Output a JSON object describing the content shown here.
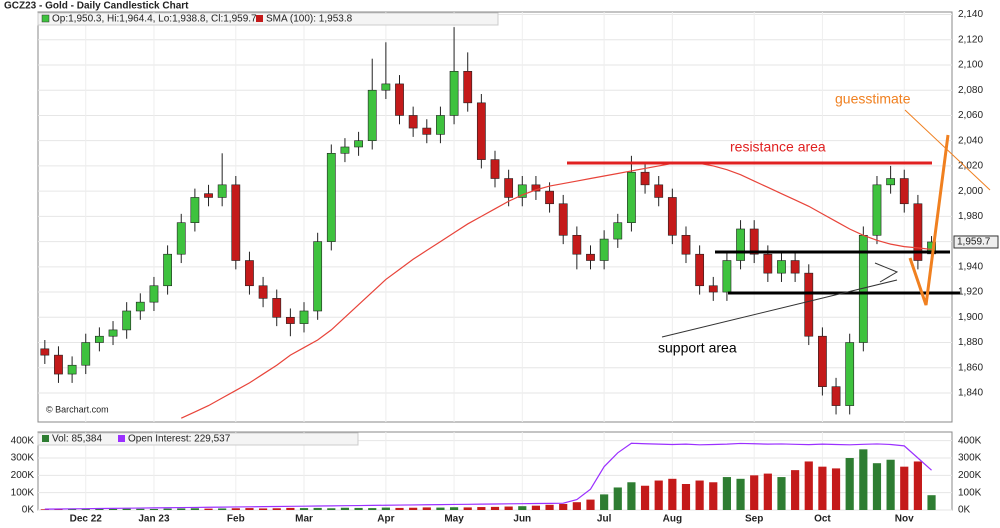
{
  "chart_data": [
    {
      "type": "candlestick",
      "title": "GCZ23 - Gold - Daily Candlestick Chart",
      "ohlc_legend": "Op:1,950.3, Hi:1,964.4, Lo:1,938.8, Cl:1,959.7",
      "last_label": "1,959.7",
      "copyright": "© Barchart.com",
      "annotations": [
        "resistance area",
        "support area",
        "guesstimate"
      ],
      "categories": [
        null,
        null,
        null,
        "Dec 22",
        null,
        null,
        null,
        null,
        "Jan 23",
        null,
        null,
        null,
        null,
        null,
        "Feb",
        null,
        null,
        null,
        null,
        "Mar",
        null,
        null,
        null,
        null,
        null,
        "Apr",
        null,
        null,
        null,
        null,
        "May",
        null,
        null,
        null,
        null,
        "Jun",
        null,
        null,
        null,
        null,
        null,
        "Jul",
        null,
        null,
        null,
        null,
        "Aug",
        null,
        null,
        null,
        null,
        null,
        "Sep",
        null,
        null,
        null,
        null,
        "Oct",
        null,
        null,
        null,
        null,
        null,
        "Nov",
        null,
        null
      ],
      "open": [
        1875,
        1870,
        1855,
        1862,
        1880,
        1885,
        1890,
        1905,
        1912,
        1925,
        1950,
        1975,
        1998,
        1995,
        2005,
        1945,
        1925,
        1915,
        1900,
        1895,
        1905,
        1960,
        2030,
        2035,
        2040,
        2080,
        2085,
        2060,
        2050,
        2045,
        2060,
        2095,
        2070,
        2025,
        2010,
        1995,
        2005,
        2000,
        1990,
        1965,
        1950,
        1945,
        1962,
        1975,
        2015,
        2005,
        1995,
        1965,
        1950,
        1925,
        1920,
        1945,
        1970,
        1950,
        1935,
        1945,
        1935,
        1885,
        1845,
        1830,
        1880,
        1965,
        2005,
        2010,
        1990,
        1950.3
      ],
      "high": [
        1882,
        1877,
        1869,
        1887,
        1892,
        1897,
        1912,
        1919,
        1932,
        1957,
        1982,
        2002,
        2005,
        2030,
        2012,
        1952,
        1932,
        1922,
        1907,
        1912,
        1967,
        2037,
        2042,
        2047,
        2105,
        2118,
        2092,
        2067,
        2057,
        2067,
        2130,
        2110,
        2077,
        2032,
        2017,
        2012,
        2012,
        2007,
        1997,
        1972,
        1957,
        1969,
        1982,
        2028,
        2022,
        2012,
        2002,
        1972,
        1957,
        1932,
        1952,
        1977,
        1977,
        1957,
        1952,
        1952,
        1942,
        1892,
        1852,
        1887,
        1972,
        2012,
        2020,
        2017,
        1997,
        1964.4
      ],
      "low": [
        1863,
        1848,
        1848,
        1855,
        1873,
        1878,
        1883,
        1898,
        1905,
        1918,
        1943,
        1968,
        1988,
        1988,
        1938,
        1918,
        1908,
        1893,
        1885,
        1888,
        1898,
        1953,
        2023,
        2028,
        2033,
        2073,
        2053,
        2043,
        2038,
        2038,
        2053,
        2063,
        2018,
        2003,
        1988,
        1988,
        1993,
        1983,
        1958,
        1938,
        1938,
        1938,
        1955,
        1968,
        1998,
        1988,
        1958,
        1943,
        1918,
        1913,
        1913,
        1938,
        1943,
        1928,
        1928,
        1928,
        1878,
        1838,
        1823,
        1823,
        1873,
        1958,
        1998,
        1983,
        1938,
        1938.8
      ],
      "close": [
        1870,
        1855,
        1862,
        1880,
        1885,
        1890,
        1905,
        1912,
        1925,
        1950,
        1975,
        1995,
        1995,
        2005,
        1945,
        1925,
        1915,
        1900,
        1895,
        1905,
        1960,
        2030,
        2035,
        2040,
        2080,
        2085,
        2060,
        2050,
        2045,
        2060,
        2095,
        2070,
        2025,
        2010,
        1995,
        2005,
        2000,
        1990,
        1965,
        1950,
        1945,
        1962,
        1975,
        2015,
        2005,
        1995,
        1965,
        1950,
        1925,
        1920,
        1945,
        1970,
        1950,
        1935,
        1945,
        1935,
        1885,
        1845,
        1830,
        1880,
        1965,
        2005,
        2010,
        1990,
        1945,
        1959.7
      ],
      "up_color": "#3ec23e",
      "down_color": "#c41a1a",
      "sma": {
        "name": "SMA (100): 1,953.8",
        "color": "#e8443a",
        "values": [
          null,
          null,
          null,
          null,
          null,
          null,
          null,
          null,
          null,
          null,
          1820,
          1825,
          1830,
          1836,
          1842,
          1848,
          1855,
          1862,
          1870,
          1876,
          1882,
          1890,
          1900,
          1910,
          1920,
          1930,
          1938,
          1946,
          1953,
          1960,
          1967,
          1974,
          1980,
          1986,
          1992,
          1997,
          2001,
          2004,
          2006,
          2008,
          2010,
          2012,
          2014,
          2016,
          2018,
          2020,
          2022,
          2023,
          2022,
          2020,
          2017,
          2013,
          2008,
          2003,
          1998,
          1993,
          1988,
          1982,
          1976,
          1970,
          1965,
          1961,
          1958,
          1956,
          1955,
          1953.8
        ]
      },
      "ylim": [
        1817,
        2142
      ],
      "yticks": [
        {
          "value": 1840,
          "label": "1,840"
        },
        {
          "value": 1860,
          "label": "1,860"
        },
        {
          "value": 1880,
          "label": "1,880"
        },
        {
          "value": 1900,
          "label": "1,900"
        },
        {
          "value": 1920,
          "label": "1,920"
        },
        {
          "value": 1940,
          "label": "1,940"
        },
        {
          "value": 1960,
          "label": "1,960"
        },
        {
          "value": 1980,
          "label": "1,980"
        },
        {
          "value": 2000,
          "label": "2,000"
        },
        {
          "value": 2020,
          "label": "2,020"
        },
        {
          "value": 2040,
          "label": "2,040"
        },
        {
          "value": 2060,
          "label": "2,060"
        },
        {
          "value": 2080,
          "label": "2,080"
        },
        {
          "value": 2100,
          "label": "2,100"
        },
        {
          "value": 2120,
          "label": "2,120"
        },
        {
          "value": 2140,
          "label": "2,140"
        }
      ],
      "grid": true
    },
    {
      "type": "bar",
      "series": [
        {
          "name": "Vol: 85,384",
          "color": "#2e7d32",
          "values": [
            4000,
            5000,
            6000,
            5000,
            7000,
            6000,
            8000,
            7000,
            6000,
            8000,
            9000,
            10000,
            8000,
            9000,
            10000,
            11000,
            9000,
            10000,
            12000,
            11000,
            12000,
            10000,
            13000,
            12000,
            11000,
            14000,
            12000,
            13000,
            15000,
            14000,
            16000,
            15000,
            17000,
            18000,
            20000,
            22000,
            25000,
            30000,
            35000,
            45000,
            60000,
            90000,
            130000,
            160000,
            140000,
            170000,
            180000,
            150000,
            170000,
            160000,
            190000,
            180000,
            200000,
            210000,
            190000,
            230000,
            280000,
            250000,
            240000,
            300000,
            350000,
            270000,
            290000,
            250000,
            280000,
            85384
          ]
        },
        {
          "name": "Open Interest: 229,537",
          "color": "#9b30ff",
          "type": "line",
          "values": [
            5000,
            5900,
            6800,
            7700,
            8600,
            9500,
            10400,
            11300,
            12200,
            13100,
            14000,
            14900,
            15800,
            16700,
            17600,
            18500,
            19400,
            20300,
            21200,
            22100,
            23000,
            23900,
            24800,
            25700,
            26600,
            27500,
            28400,
            29300,
            30200,
            31100,
            32000,
            32900,
            33800,
            34700,
            35600,
            36500,
            37400,
            38300,
            39200,
            60000,
            120000,
            250000,
            330000,
            385000,
            382000,
            380000,
            378000,
            380000,
            376000,
            378000,
            380000,
            384000,
            382000,
            380000,
            381000,
            379000,
            377000,
            380000,
            378000,
            376000,
            379000,
            381000,
            378000,
            370000,
            300000,
            229537
          ]
        }
      ],
      "ylim": [
        0,
        450000
      ],
      "yticks": [
        {
          "value": 0,
          "label": "0K"
        },
        {
          "value": 100000,
          "label": "100K"
        },
        {
          "value": 200000,
          "label": "200K"
        },
        {
          "value": 300000,
          "label": "300K"
        },
        {
          "value": 400000,
          "label": "400K"
        }
      ],
      "grid": true
    }
  ]
}
